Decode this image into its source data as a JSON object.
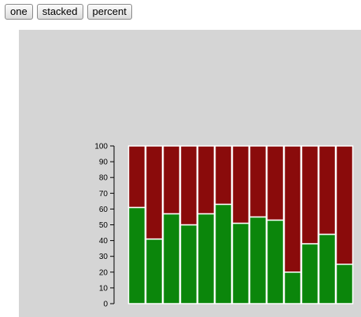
{
  "toolbar": {
    "buttons": [
      {
        "label": "one"
      },
      {
        "label": "stacked"
      },
      {
        "label": "percent"
      }
    ]
  },
  "colors": {
    "panel_bg": "#d5d5d5",
    "bottom_segment": "#0b860b",
    "top_segment": "#8a0b0b",
    "bar_stroke": "#ffffff"
  },
  "chart_data": {
    "type": "bar",
    "stacked": true,
    "categories": [
      "",
      "",
      "",
      "",
      "",
      "",
      "",
      "",
      "",
      "",
      "",
      "",
      ""
    ],
    "series": [
      {
        "values": [
          61,
          41,
          57,
          50,
          57,
          63,
          51,
          55,
          53,
          20,
          38,
          44,
          25
        ]
      },
      {
        "values": [
          39,
          59,
          43,
          50,
          43,
          37,
          49,
          45,
          47,
          80,
          62,
          56,
          75
        ]
      }
    ],
    "ylim": [
      0,
      100
    ],
    "yticks": [
      0,
      10,
      20,
      30,
      40,
      50,
      60,
      70,
      80,
      90,
      100
    ],
    "grid": false
  }
}
